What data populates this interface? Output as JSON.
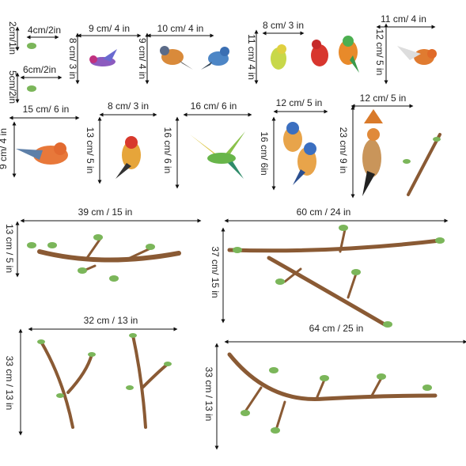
{
  "horizontal": [
    "4cm/2in",
    "9  cm/ 4 in",
    "10 cm/ 4 in",
    "8 cm/ 3 in",
    "11 cm/ 4 in",
    "6cm/2in",
    "15 cm/ 6 in",
    "8 cm/ 3 in",
    "16 cm/ 6 in",
    "12 cm/ 5 in",
    "12 cm/ 5 in",
    "39 cm / 15 in",
    "60 cm / 24 in",
    "32 cm / 13 in",
    "64 cm / 25 in"
  ],
  "vertical": [
    "2cm/1in",
    "8 cm/ 3 in",
    "9 cm/ 4 in",
    "11 cm/ 4 in",
    "12 cm/ 5 in",
    "5cm/2in",
    "9 cm/ 4 in",
    "13 cm/ 5 in",
    "16 cm/ 6 in",
    "16 cm/ 6in",
    "23 cm/ 9 in",
    "13 cm / 5 in",
    "37 cm/ 15 in",
    "33 cm / 13 in",
    "33 cm / 13 in"
  ]
}
